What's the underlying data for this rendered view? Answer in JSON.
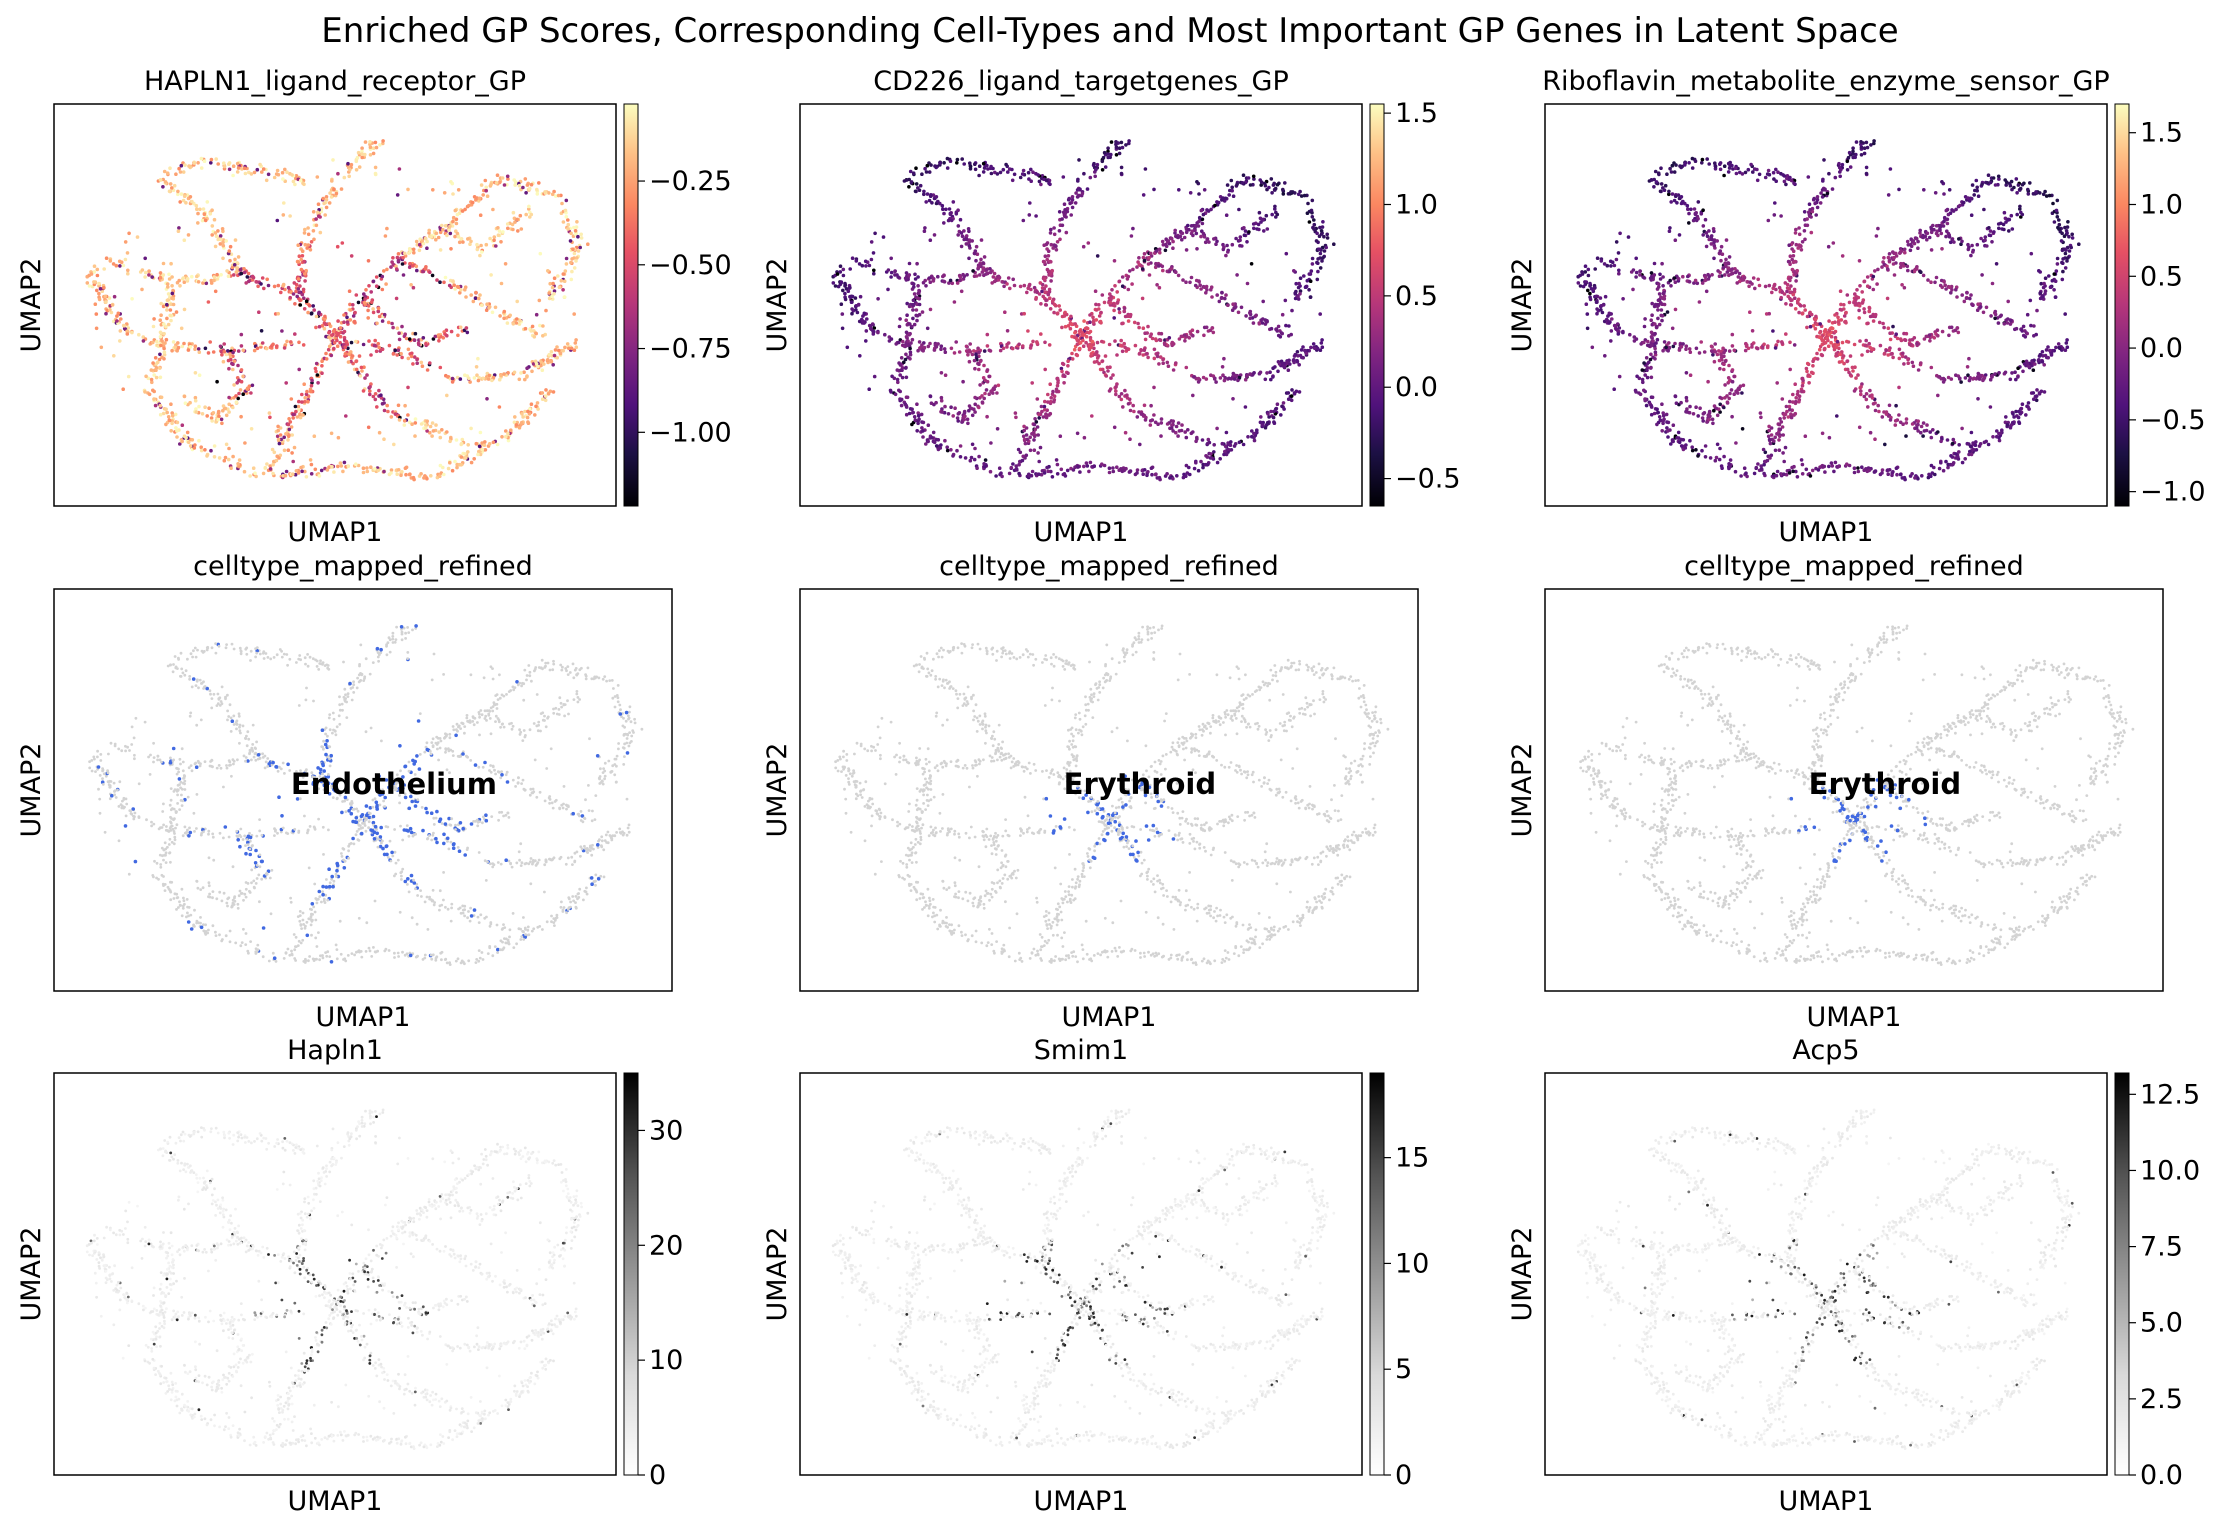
{
  "figure": {
    "title": "Enriched GP Scores, Corresponding Cell-Types and Most Important GP Genes in Latent Space"
  },
  "chart_data": [
    {
      "type": "scatter",
      "kind": "gp_score",
      "cmap": "magma",
      "title": "HAPLN1_ligand_receptor_GP",
      "xlabel": "UMAP1",
      "ylabel": "UMAP2",
      "colorbar": {
        "range": [
          -1.22,
          -0.02
        ],
        "ticks": [
          -1.0,
          -0.75,
          -0.5,
          -0.25
        ],
        "tick_labels": [
          "−1.00",
          "−0.75",
          "−0.50",
          "−0.25"
        ]
      }
    },
    {
      "type": "scatter",
      "kind": "gp_score",
      "cmap": "magma",
      "title": "CD226_ligand_targetgenes_GP",
      "xlabel": "UMAP1",
      "ylabel": "UMAP2",
      "colorbar": {
        "range": [
          -0.65,
          1.55
        ],
        "ticks": [
          -0.5,
          0.0,
          0.5,
          1.0,
          1.5
        ],
        "tick_labels": [
          "−0.5",
          "0.0",
          "0.5",
          "1.0",
          "1.5"
        ]
      }
    },
    {
      "type": "scatter",
      "kind": "gp_score",
      "cmap": "magma",
      "title": "Riboflavin_metabolite_enzyme_sensor_GP",
      "xlabel": "UMAP1",
      "ylabel": "UMAP2",
      "colorbar": {
        "range": [
          -1.1,
          1.7
        ],
        "ticks": [
          -1.0,
          -0.5,
          0.0,
          0.5,
          1.0,
          1.5
        ],
        "tick_labels": [
          "−1.0",
          "−0.5",
          "0.0",
          "0.5",
          "1.0",
          "1.5"
        ]
      }
    },
    {
      "type": "scatter",
      "kind": "celltype",
      "title": "celltype_mapped_refined",
      "xlabel": "UMAP1",
      "ylabel": "UMAP2",
      "highlight": {
        "label": "Endothelium",
        "color": "#4169e1"
      },
      "background_color": "#d3d3d3"
    },
    {
      "type": "scatter",
      "kind": "celltype",
      "title": "celltype_mapped_refined",
      "xlabel": "UMAP1",
      "ylabel": "UMAP2",
      "highlight": {
        "label": "Erythroid",
        "color": "#4169e1"
      },
      "background_color": "#d3d3d3"
    },
    {
      "type": "scatter",
      "kind": "celltype",
      "title": "celltype_mapped_refined",
      "xlabel": "UMAP1",
      "ylabel": "UMAP2",
      "highlight": {
        "label": "Erythroid",
        "color": "#4169e1"
      },
      "background_color": "#d3d3d3"
    },
    {
      "type": "scatter",
      "kind": "gene_expression",
      "cmap": "Greys",
      "title": "Hapln1",
      "xlabel": "UMAP1",
      "ylabel": "UMAP2",
      "colorbar": {
        "range": [
          0,
          35
        ],
        "ticks": [
          0,
          10,
          20,
          30
        ],
        "tick_labels": [
          "0",
          "10",
          "20",
          "30"
        ]
      }
    },
    {
      "type": "scatter",
      "kind": "gene_expression",
      "cmap": "Greys",
      "title": "Smim1",
      "xlabel": "UMAP1",
      "ylabel": "UMAP2",
      "colorbar": {
        "range": [
          0,
          19
        ],
        "ticks": [
          0,
          5,
          10,
          15
        ],
        "tick_labels": [
          "0",
          "5",
          "10",
          "15"
        ]
      }
    },
    {
      "type": "scatter",
      "kind": "gene_expression",
      "cmap": "Greys",
      "title": "Acp5",
      "xlabel": "UMAP1",
      "ylabel": "UMAP2",
      "colorbar": {
        "range": [
          0,
          13.2
        ],
        "ticks": [
          0.0,
          2.5,
          5.0,
          7.5,
          10.0,
          12.5
        ],
        "tick_labels": [
          "0.0",
          "2.5",
          "5.0",
          "7.5",
          "10.0",
          "12.5"
        ]
      }
    }
  ]
}
